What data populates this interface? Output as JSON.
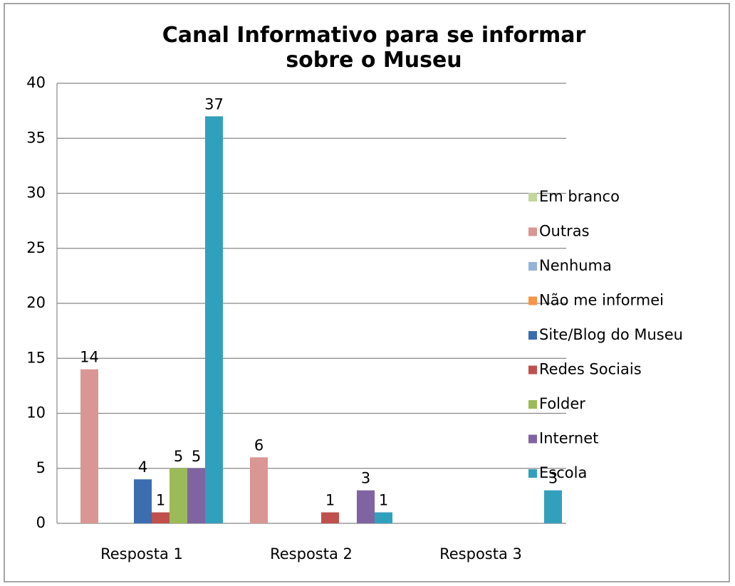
{
  "chart_data": {
    "type": "bar",
    "title": "Canal Informativo para se informar sobre o Museu",
    "categories": [
      "Resposta 1",
      "Resposta 2",
      "Resposta 3"
    ],
    "series": [
      {
        "name": "Em branco",
        "color": "#c3d69b",
        "values": [
          null,
          null,
          null
        ]
      },
      {
        "name": "Outras",
        "color": "#d99694",
        "values": [
          14,
          6,
          null
        ]
      },
      {
        "name": "Nenhuma",
        "color": "#95b3d7",
        "values": [
          null,
          null,
          null
        ]
      },
      {
        "name": "Não me informei",
        "color": "#f79646",
        "values": [
          null,
          null,
          null
        ]
      },
      {
        "name": "Site/Blog do Museu",
        "color": "#3b6db0",
        "values": [
          4,
          null,
          null
        ]
      },
      {
        "name": "Redes Sociais",
        "color": "#c0504d",
        "values": [
          1,
          1,
          null
        ]
      },
      {
        "name": "Folder",
        "color": "#9bbb59",
        "values": [
          5,
          null,
          null
        ]
      },
      {
        "name": "Internet",
        "color": "#8064a2",
        "values": [
          5,
          3,
          null
        ]
      },
      {
        "name": "Escola",
        "color": "#31a0bd",
        "values": [
          37,
          1,
          3
        ]
      }
    ],
    "ylim": [
      0,
      40
    ],
    "yticks": [
      0,
      5,
      10,
      15,
      20,
      25,
      30,
      35,
      40
    ],
    "grid": true,
    "legend": "right"
  }
}
